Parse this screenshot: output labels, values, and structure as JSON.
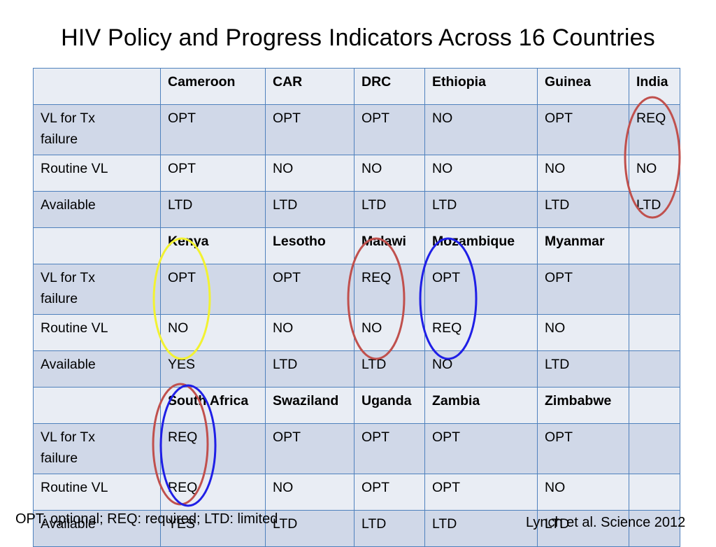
{
  "slide": {
    "title": "HIV Policy and Progress Indicators Across 16 Countries",
    "footnote": "OPT: optional; REQ: required; LTD: limited",
    "citation": "Lynch et al. Science 2012"
  },
  "table": {
    "groups": [
      {
        "countries": [
          "Cameroon",
          "CAR",
          "DRC",
          "Ethiopia",
          "Guinea",
          "India"
        ],
        "rows": [
          {
            "label": "VL for Tx failure",
            "values": [
              "OPT",
              "OPT",
              "OPT",
              "NO",
              "OPT",
              "REQ"
            ]
          },
          {
            "label": "Routine VL",
            "values": [
              "OPT",
              "NO",
              "NO",
              "NO",
              "NO",
              "NO"
            ]
          },
          {
            "label": "Available",
            "values": [
              "LTD",
              "LTD",
              "LTD",
              "LTD",
              "LTD",
              "LTD"
            ]
          }
        ]
      },
      {
        "countries": [
          "Kenya",
          "Lesotho",
          "Malawi",
          "Mozambique",
          "Myanmar",
          ""
        ],
        "rows": [
          {
            "label": "VL for Tx failure",
            "values": [
              "OPT",
              "OPT",
              "REQ",
              "OPT",
              "OPT",
              ""
            ]
          },
          {
            "label": "Routine VL",
            "values": [
              "NO",
              "NO",
              "NO",
              "REQ",
              "NO",
              ""
            ]
          },
          {
            "label": "Available",
            "values": [
              "YES",
              "LTD",
              "LTD",
              "NO",
              "LTD",
              ""
            ]
          }
        ]
      },
      {
        "countries": [
          "South Africa",
          "Swaziland",
          "Uganda",
          "Zambia",
          "Zimbabwe",
          ""
        ],
        "rows": [
          {
            "label": "VL for Tx failure",
            "values": [
              "REQ",
              "OPT",
              "OPT",
              "OPT",
              "OPT",
              ""
            ]
          },
          {
            "label": "Routine VL",
            "values": [
              "REQ",
              "NO",
              "OPT",
              "OPT",
              "NO",
              ""
            ]
          },
          {
            "label": "Available",
            "values": [
              "YES",
              "LTD",
              "LTD",
              "LTD",
              "LTD",
              ""
            ]
          }
        ]
      }
    ]
  },
  "annotations": {
    "colors": {
      "red": "#c0504d",
      "yellow": "#f2f231",
      "blue": "#1f1fe6"
    },
    "highlights": [
      {
        "country": "India",
        "color": "red"
      },
      {
        "country": "Kenya",
        "color": "yellow"
      },
      {
        "country": "Malawi",
        "color": "red"
      },
      {
        "country": "Mozambique",
        "color": "blue"
      },
      {
        "country": "South Africa",
        "color": "red"
      },
      {
        "country": "South Africa",
        "color": "blue"
      }
    ]
  }
}
